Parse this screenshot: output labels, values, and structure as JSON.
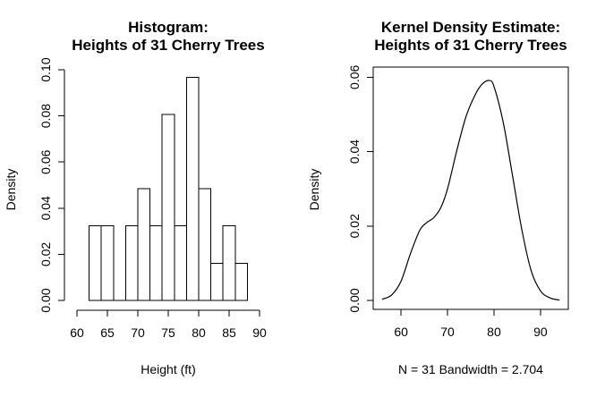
{
  "chart_data": [
    {
      "type": "bar",
      "subtype": "histogram",
      "title_lines": [
        "Histogram:",
        "Heights of 31 Cherry Trees"
      ],
      "xlabel": "Height (ft)",
      "ylabel": "Density",
      "xlim": [
        60,
        90
      ],
      "ylim": [
        0,
        0.1
      ],
      "x_ticks": [
        60,
        65,
        70,
        75,
        80,
        85,
        90
      ],
      "y_ticks": [
        0.0,
        0.02,
        0.04,
        0.06,
        0.08,
        0.1
      ],
      "y_tick_labels": [
        "0.00",
        "0.02",
        "0.04",
        "0.06",
        "0.08",
        "0.10"
      ],
      "box": false,
      "grid": false,
      "bins": [
        {
          "x0": 62,
          "x1": 64,
          "density": 0.0323
        },
        {
          "x0": 64,
          "x1": 66,
          "density": 0.0323
        },
        {
          "x0": 66,
          "x1": 68,
          "density": 0.0
        },
        {
          "x0": 68,
          "x1": 70,
          "density": 0.0323
        },
        {
          "x0": 70,
          "x1": 72,
          "density": 0.0484
        },
        {
          "x0": 72,
          "x1": 74,
          "density": 0.0323
        },
        {
          "x0": 74,
          "x1": 76,
          "density": 0.0806
        },
        {
          "x0": 76,
          "x1": 78,
          "density": 0.0323
        },
        {
          "x0": 78,
          "x1": 80,
          "density": 0.0968
        },
        {
          "x0": 80,
          "x1": 82,
          "density": 0.0484
        },
        {
          "x0": 82,
          "x1": 84,
          "density": 0.0161
        },
        {
          "x0": 84,
          "x1": 86,
          "density": 0.0323
        },
        {
          "x0": 86,
          "x1": 88,
          "density": 0.0161
        }
      ]
    },
    {
      "type": "line",
      "subtype": "density",
      "title_lines": [
        "Kernel Density Estimate:",
        "Heights of 31 Cherry Trees"
      ],
      "xlabel": "N = 31   Bandwidth = 2.704",
      "ylabel": "Density",
      "xlim": [
        54,
        96
      ],
      "ylim": [
        0,
        0.062
      ],
      "x_ticks": [
        60,
        70,
        80,
        90
      ],
      "y_ticks": [
        0.0,
        0.02,
        0.04,
        0.06
      ],
      "y_tick_labels": [
        "0.00",
        "0.02",
        "0.04",
        "0.06"
      ],
      "box": true,
      "grid": false,
      "series": [
        {
          "x": [
            55.9,
            58,
            60,
            62,
            64,
            65.5,
            67,
            68.5,
            70,
            72,
            74,
            76,
            77.5,
            79,
            80,
            82,
            84,
            86,
            88,
            90,
            92,
            94.1
          ],
          "y": [
            0.0003,
            0.0015,
            0.0052,
            0.0125,
            0.0188,
            0.0209,
            0.0222,
            0.0248,
            0.03,
            0.0403,
            0.0495,
            0.0554,
            0.0582,
            0.0591,
            0.0575,
            0.0478,
            0.0335,
            0.019,
            0.008,
            0.0026,
            0.0007,
            0.0001
          ]
        }
      ]
    }
  ]
}
